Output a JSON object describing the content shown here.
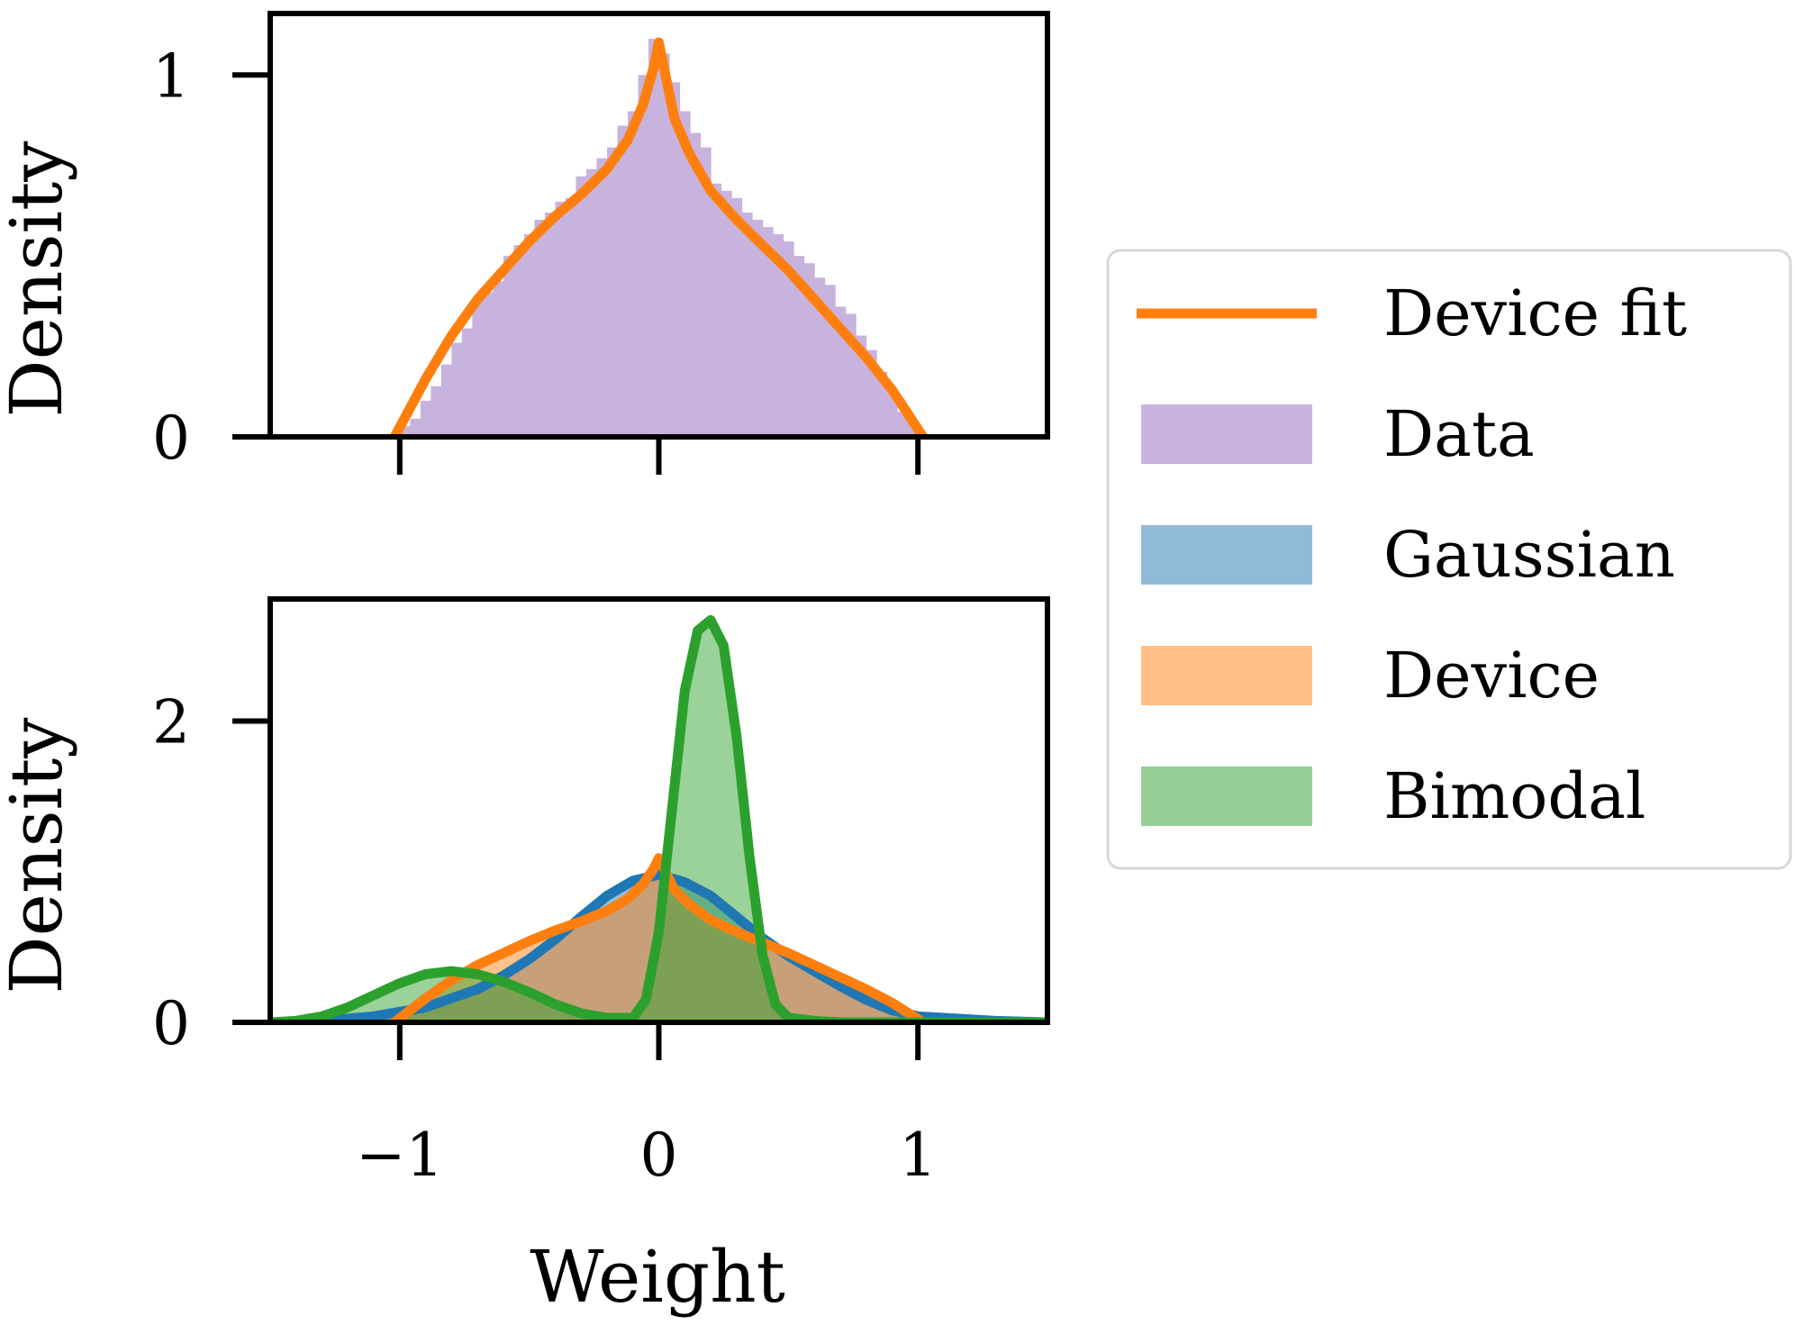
{
  "chart_data": [
    {
      "type": "area",
      "panel": "top",
      "ylabel": "Density",
      "xlabel": "",
      "xlim": [
        -1.5,
        1.5
      ],
      "ylim": [
        0,
        1.17
      ],
      "xticks": [
        -1,
        0,
        1
      ],
      "yticks": [
        0,
        1
      ],
      "ytick_labels": [
        "0",
        "1"
      ],
      "show_xtick_labels": false,
      "histogram": {
        "name": "Data",
        "bin_width": 0.04,
        "bins_x": [
          -0.98,
          -0.94,
          -0.9,
          -0.86,
          -0.82,
          -0.78,
          -0.74,
          -0.7,
          -0.66,
          -0.62,
          -0.58,
          -0.54,
          -0.5,
          -0.46,
          -0.42,
          -0.38,
          -0.34,
          -0.3,
          -0.26,
          -0.22,
          -0.18,
          -0.14,
          -0.1,
          -0.06,
          -0.02,
          0.02,
          0.06,
          0.1,
          0.14,
          0.18,
          0.22,
          0.26,
          0.3,
          0.34,
          0.38,
          0.42,
          0.46,
          0.5,
          0.54,
          0.58,
          0.62,
          0.66,
          0.7,
          0.74,
          0.78,
          0.82,
          0.86,
          0.9,
          0.94,
          0.98
        ],
        "bins_y": [
          0.03,
          0.05,
          0.1,
          0.14,
          0.2,
          0.26,
          0.3,
          0.38,
          0.4,
          0.43,
          0.5,
          0.53,
          0.56,
          0.6,
          0.62,
          0.65,
          0.66,
          0.72,
          0.74,
          0.77,
          0.8,
          0.86,
          0.9,
          1.0,
          1.1,
          1.06,
          0.98,
          0.9,
          0.84,
          0.8,
          0.7,
          0.68,
          0.66,
          0.62,
          0.6,
          0.58,
          0.56,
          0.54,
          0.5,
          0.48,
          0.44,
          0.42,
          0.36,
          0.34,
          0.28,
          0.24,
          0.18,
          0.12,
          0.07,
          0.04
        ]
      },
      "lines": [
        {
          "name": "Device fit",
          "color": "#ff7f0e",
          "x": [
            -1.02,
            -0.9,
            -0.8,
            -0.7,
            -0.6,
            -0.5,
            -0.4,
            -0.3,
            -0.2,
            -0.12,
            -0.06,
            -0.02,
            0.0,
            0.02,
            0.06,
            0.12,
            0.2,
            0.3,
            0.4,
            0.5,
            0.6,
            0.7,
            0.8,
            0.9,
            1.02
          ],
          "y": [
            0.0,
            0.16,
            0.28,
            0.38,
            0.46,
            0.54,
            0.61,
            0.67,
            0.74,
            0.82,
            0.92,
            1.02,
            1.09,
            1.02,
            0.88,
            0.78,
            0.68,
            0.6,
            0.53,
            0.46,
            0.38,
            0.3,
            0.22,
            0.13,
            0.0
          ]
        }
      ]
    },
    {
      "type": "area",
      "panel": "bottom",
      "ylabel": "Density",
      "xlabel": "Weight",
      "xlim": [
        -1.5,
        1.5
      ],
      "ylim": [
        0,
        2.81
      ],
      "xticks": [
        -1,
        0,
        1
      ],
      "yticks": [
        0,
        2
      ],
      "ytick_labels": [
        "0",
        "2"
      ],
      "xtick_labels": [
        "−1",
        "0",
        "1"
      ],
      "series": [
        {
          "name": "Gaussian",
          "color": "#1f77b4",
          "fill": "rgba(31,119,180,0.48)",
          "x": [
            -1.5,
            -1.3,
            -1.1,
            -0.9,
            -0.8,
            -0.7,
            -0.6,
            -0.5,
            -0.4,
            -0.3,
            -0.2,
            -0.1,
            0.0,
            0.1,
            0.2,
            0.3,
            0.4,
            0.5,
            0.6,
            0.7,
            0.8,
            0.9,
            1.0,
            1.1,
            1.3,
            1.5
          ],
          "y": [
            0.0,
            0.01,
            0.04,
            0.1,
            0.16,
            0.22,
            0.31,
            0.42,
            0.55,
            0.7,
            0.84,
            0.94,
            0.98,
            0.93,
            0.84,
            0.7,
            0.56,
            0.44,
            0.34,
            0.24,
            0.15,
            0.08,
            0.04,
            0.03,
            0.01,
            0.0
          ]
        },
        {
          "name": "Device",
          "color": "#ff7f0e",
          "fill": "rgba(255,127,14,0.48)",
          "x": [
            -1.02,
            -0.9,
            -0.8,
            -0.7,
            -0.6,
            -0.5,
            -0.4,
            -0.3,
            -0.2,
            -0.12,
            -0.06,
            -0.02,
            0.0,
            0.02,
            0.06,
            0.12,
            0.2,
            0.3,
            0.4,
            0.5,
            0.6,
            0.7,
            0.8,
            0.9,
            1.02
          ],
          "y": [
            0.0,
            0.16,
            0.28,
            0.38,
            0.46,
            0.54,
            0.61,
            0.67,
            0.74,
            0.82,
            0.92,
            1.02,
            1.09,
            1.02,
            0.88,
            0.78,
            0.68,
            0.6,
            0.53,
            0.46,
            0.38,
            0.3,
            0.22,
            0.13,
            0.0
          ]
        },
        {
          "name": "Bimodal",
          "color": "#2ca02c",
          "fill": "rgba(44,160,44,0.48)",
          "x": [
            -1.5,
            -1.4,
            -1.3,
            -1.2,
            -1.1,
            -1.0,
            -0.9,
            -0.8,
            -0.7,
            -0.6,
            -0.5,
            -0.4,
            -0.3,
            -0.2,
            -0.1,
            -0.05,
            0.0,
            0.05,
            0.1,
            0.15,
            0.2,
            0.25,
            0.3,
            0.35,
            0.4,
            0.45,
            0.5,
            0.6,
            0.7,
            0.8,
            1.0,
            1.5
          ],
          "y": [
            0.0,
            0.01,
            0.04,
            0.1,
            0.18,
            0.26,
            0.32,
            0.34,
            0.32,
            0.27,
            0.2,
            0.12,
            0.06,
            0.03,
            0.03,
            0.15,
            0.6,
            1.4,
            2.2,
            2.6,
            2.67,
            2.5,
            1.9,
            1.1,
            0.45,
            0.12,
            0.03,
            0.01,
            0.0,
            0.0,
            0.0,
            0.0
          ]
        }
      ]
    }
  ],
  "legend": {
    "position": "right",
    "entries": [
      {
        "label": "Device fit",
        "kind": "line",
        "color": "#ff7f0e"
      },
      {
        "label": "Data",
        "kind": "patch",
        "color": "#c8b3de"
      },
      {
        "label": "Gaussian",
        "kind": "patch",
        "color": "#91bad9"
      },
      {
        "label": "Device",
        "kind": "patch",
        "color": "#ffbf86"
      },
      {
        "label": "Bimodal",
        "kind": "patch",
        "color": "#96cf96"
      }
    ]
  },
  "colors": {
    "hist": "#c8b3de",
    "axis": "#000000"
  }
}
